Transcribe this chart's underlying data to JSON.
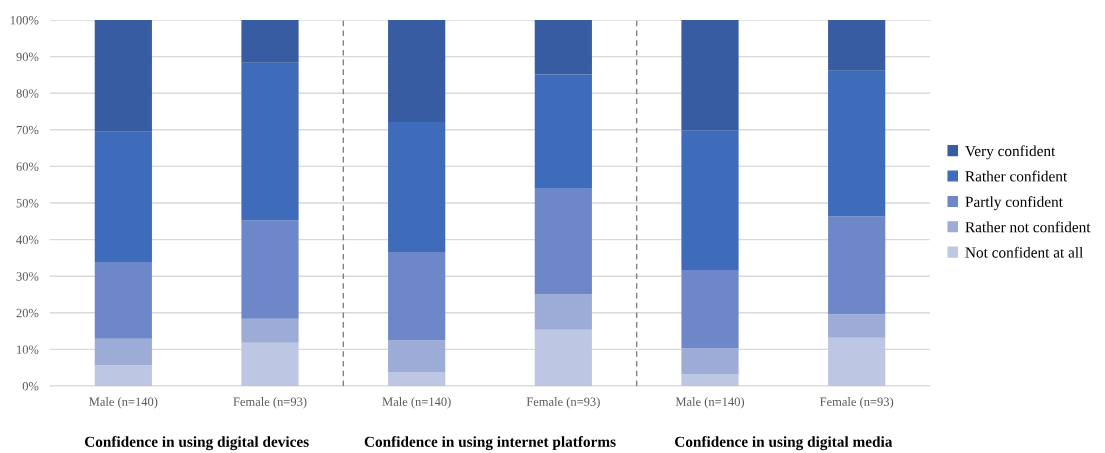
{
  "chart_data": {
    "type": "bar",
    "stacked": true,
    "categories": [
      "Male (n=140)",
      "Female (n=93)",
      "Male (n=140)",
      "Female (n=93)",
      "Male (n=140)",
      "Female (n=93)"
    ],
    "series": [
      {
        "name": "Not confident at all",
        "color": "#bdc7e3",
        "values": [
          5.7,
          11.8,
          3.8,
          15.4,
          3.2,
          13.2
        ]
      },
      {
        "name": "Rather not confident",
        "color": "#9dacd6",
        "values": [
          7.2,
          6.6,
          8.7,
          9.6,
          7.2,
          6.4
        ]
      },
      {
        "name": "Partly confident",
        "color": "#6e87c8",
        "values": [
          21.0,
          26.8,
          24.1,
          28.9,
          21.3,
          26.8
        ]
      },
      {
        "name": "Rather confident",
        "color": "#3e6cbb",
        "values": [
          35.6,
          43.1,
          35.5,
          31.2,
          38.2,
          39.7
        ]
      },
      {
        "name": "Very confident",
        "color": "#375ca1",
        "values": [
          30.5,
          11.7,
          27.9,
          14.9,
          30.1,
          13.9
        ]
      }
    ],
    "ylim": [
      0,
      100
    ],
    "yticks": [
      {
        "value": 0,
        "label": "0%"
      },
      {
        "value": 10,
        "label": "10%"
      },
      {
        "value": 20,
        "label": "20%"
      },
      {
        "value": 30,
        "label": "30%"
      },
      {
        "value": 40,
        "label": "40%"
      },
      {
        "value": 50,
        "label": "50%"
      },
      {
        "value": 60,
        "label": "60%"
      },
      {
        "value": 70,
        "label": "70%"
      },
      {
        "value": 80,
        "label": "80%"
      },
      {
        "value": 90,
        "label": "90%"
      },
      {
        "value": 100,
        "label": "100%"
      }
    ],
    "grid": "y",
    "legend": "right",
    "annotations": [
      "Confidence in using digital devices",
      "Confidence in using internet platforms",
      "Confidence in using digital media"
    ]
  }
}
